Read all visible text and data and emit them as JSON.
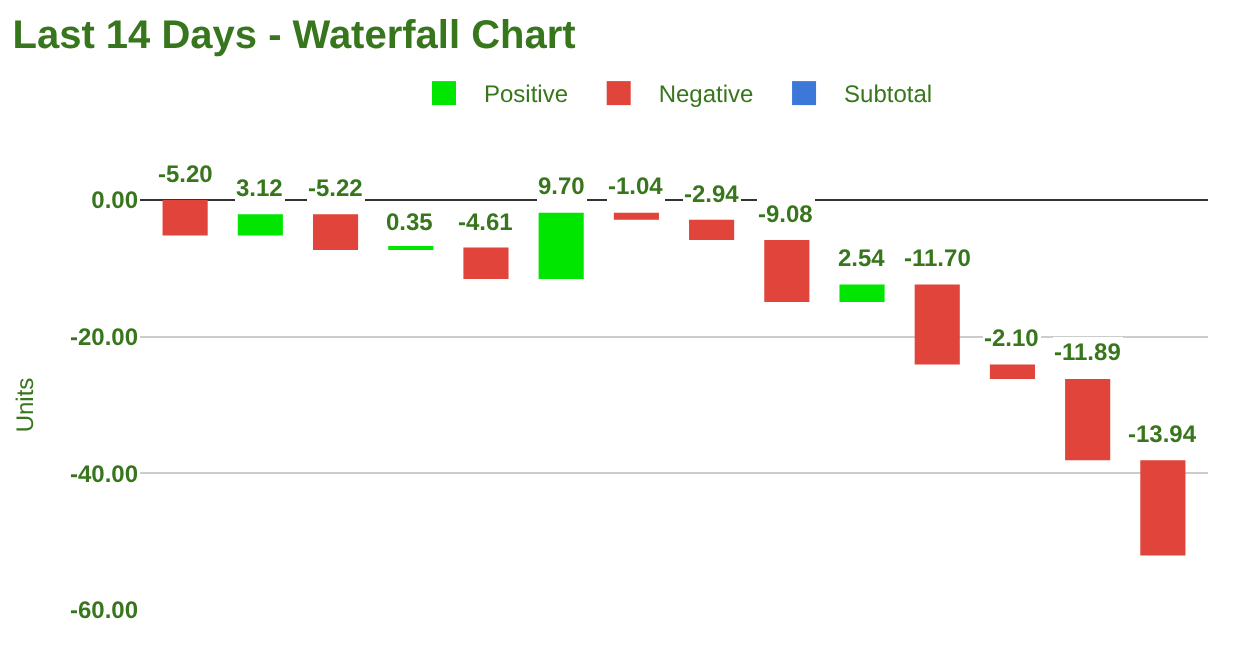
{
  "chart_data": {
    "type": "bar",
    "title": "Last 14 Days - Waterfall Chart",
    "ylabel": "Units",
    "categories": [
      null,
      null,
      null,
      null,
      null,
      null,
      null,
      null,
      null,
      null,
      null,
      null,
      null,
      null
    ],
    "series": [
      {
        "name": "Positive",
        "color": "#00e600",
        "values": [
          null,
          3.12,
          null,
          0.35,
          null,
          9.7,
          null,
          null,
          null,
          2.54,
          null,
          null,
          null,
          null
        ],
        "base": [
          null,
          -5.2,
          null,
          -7.3,
          null,
          -11.56,
          null,
          null,
          null,
          -14.92,
          null,
          null,
          null,
          null
        ]
      },
      {
        "name": "Negative",
        "color": "#e0443a",
        "values": [
          -5.2,
          null,
          -5.22,
          null,
          -4.61,
          null,
          -1.04,
          -2.94,
          -9.08,
          null,
          -11.7,
          -2.1,
          -11.89,
          -13.94
        ],
        "base": [
          0,
          null,
          -2.08,
          null,
          -6.95,
          null,
          -1.86,
          -2.9,
          -5.84,
          null,
          -12.38,
          -24.08,
          -26.18,
          -38.07
        ]
      },
      {
        "name": "Subtotal",
        "color": "#3c78d8",
        "values": [
          null,
          null,
          null,
          null,
          null,
          null,
          null,
          null,
          null,
          null,
          null,
          null,
          null,
          null
        ],
        "base": [
          null,
          null,
          null,
          null,
          null,
          null,
          null,
          null,
          null,
          null,
          null,
          null,
          null,
          null
        ]
      }
    ],
    "value_labels": [
      "-5.20",
      "3.12",
      "-5.22",
      "0.35",
      "-4.61",
      "9.70",
      "-1.04",
      "-2.94",
      "-9.08",
      "2.54",
      "-11.70",
      "-2.10",
      "-11.89",
      "-13.94"
    ],
    "ylim": [
      -60,
      0
    ],
    "yticks": [
      {
        "value": 0,
        "label": "0.00"
      },
      {
        "value": -20,
        "label": "-20.00"
      },
      {
        "value": -40,
        "label": "-40.00"
      },
      {
        "value": -60,
        "label": "-60.00"
      }
    ],
    "grid": "y",
    "legend": "top"
  }
}
